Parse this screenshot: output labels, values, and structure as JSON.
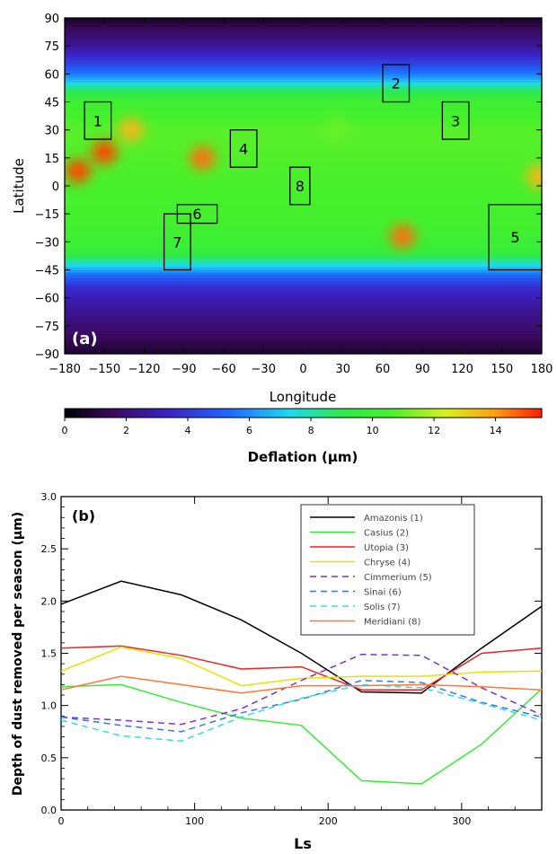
{
  "chart_data": [
    {
      "type": "heatmap",
      "panel_label": "(a)",
      "xlabel": "Longitude",
      "ylabel": "Latitude",
      "xlim": [
        -180,
        180
      ],
      "ylim": [
        -90,
        90
      ],
      "x_ticks": [
        "-180",
        "-150",
        "-120",
        "-90",
        "-60",
        "-30",
        "0",
        "30",
        "60",
        "90",
        "120",
        "150",
        "180"
      ],
      "y_ticks": [
        "90",
        "75",
        "60",
        "45",
        "30",
        "15",
        "0",
        "-15",
        "-30",
        "-45",
        "-60",
        "-75",
        "-90"
      ],
      "colorbar": {
        "label": "Deflation (μm)",
        "range": [
          0,
          15.5
        ],
        "ticks": [
          "0",
          "2",
          "4",
          "6",
          "8",
          "10",
          "12",
          "14"
        ]
      },
      "hotspots": [
        {
          "lon": -170,
          "lat": 8,
          "value": 15
        },
        {
          "lon": -150,
          "lat": 18,
          "value": 15
        },
        {
          "lon": -130,
          "lat": 30,
          "value": 13.5
        },
        {
          "lon": -76,
          "lat": 15,
          "value": 14.5
        },
        {
          "lon": 75,
          "lat": -27,
          "value": 14.5
        },
        {
          "lon": 178,
          "lat": 5,
          "value": 13.5
        },
        {
          "lon": 25,
          "lat": 30,
          "value": 11
        }
      ],
      "regions": [
        {
          "label": "1",
          "lon": [
            -165,
            -145
          ],
          "lat": [
            25,
            45
          ]
        },
        {
          "label": "2",
          "lon": [
            60,
            80
          ],
          "lat": [
            45,
            65
          ]
        },
        {
          "label": "3",
          "lon": [
            105,
            125
          ],
          "lat": [
            25,
            45
          ]
        },
        {
          "label": "4",
          "lon": [
            -55,
            -35
          ],
          "lat": [
            10,
            30
          ]
        },
        {
          "label": "5",
          "lon": [
            140,
            180
          ],
          "lat": [
            -45,
            -10
          ]
        },
        {
          "label": "6",
          "lon": [
            -95,
            -65
          ],
          "lat": [
            -20,
            -10
          ]
        },
        {
          "label": "7",
          "lon": [
            -105,
            -85
          ],
          "lat": [
            -45,
            -15
          ]
        },
        {
          "label": "8",
          "lon": [
            -10,
            5
          ],
          "lat": [
            -10,
            10
          ]
        }
      ]
    },
    {
      "type": "line",
      "panel_label": "(b)",
      "xlabel": "Ls",
      "ylabel": "Depth of dust removed per season (μm)",
      "xlim": [
        0,
        360
      ],
      "ylim": [
        0,
        3.0
      ],
      "x_ticks": [
        "0",
        "100",
        "200",
        "300"
      ],
      "y_ticks": [
        "0.0",
        "0.5",
        "1.0",
        "1.5",
        "2.0",
        "2.5",
        "3.0"
      ],
      "legend_position": "top-right",
      "x": [
        0,
        45,
        90,
        135,
        180,
        225,
        270,
        315,
        360
      ],
      "series": [
        {
          "name": "Amazonis (1)",
          "color": "#000000",
          "dash": false,
          "values": [
            1.97,
            2.19,
            2.06,
            1.82,
            1.5,
            1.13,
            1.12,
            1.55,
            1.95
          ]
        },
        {
          "name": "Casius (2)",
          "color": "#33ee33",
          "dash": false,
          "values": [
            1.18,
            1.2,
            1.03,
            0.88,
            0.81,
            0.28,
            0.25,
            0.63,
            1.16
          ]
        },
        {
          "name": "Utopia (3)",
          "color": "#ee2222",
          "dash": false,
          "values": [
            1.55,
            1.57,
            1.48,
            1.35,
            1.37,
            1.15,
            1.15,
            1.5,
            1.55
          ]
        },
        {
          "name": "Chryse (4)",
          "color": "#e4e400",
          "dash": false,
          "values": [
            1.33,
            1.56,
            1.45,
            1.19,
            1.26,
            1.28,
            1.28,
            1.32,
            1.33
          ]
        },
        {
          "name": "Cimmerium (5)",
          "color": "#7733cc",
          "dash": true,
          "values": [
            0.89,
            0.86,
            0.82,
            0.97,
            1.24,
            1.49,
            1.48,
            1.17,
            0.91
          ]
        },
        {
          "name": "Sinai (6)",
          "color": "#3377ee",
          "dash": true,
          "values": [
            0.89,
            0.81,
            0.75,
            0.93,
            1.06,
            1.24,
            1.22,
            1.03,
            0.89
          ]
        },
        {
          "name": "Solis (7)",
          "color": "#33dddd",
          "dash": true,
          "values": [
            0.86,
            0.71,
            0.66,
            0.89,
            1.07,
            1.2,
            1.17,
            1.02,
            0.86
          ]
        },
        {
          "name": "Meridiani (8)",
          "color": "#ff7733",
          "dash": false,
          "values": [
            1.15,
            1.28,
            1.2,
            1.12,
            1.19,
            1.19,
            1.2,
            1.18,
            1.15
          ]
        }
      ]
    }
  ]
}
